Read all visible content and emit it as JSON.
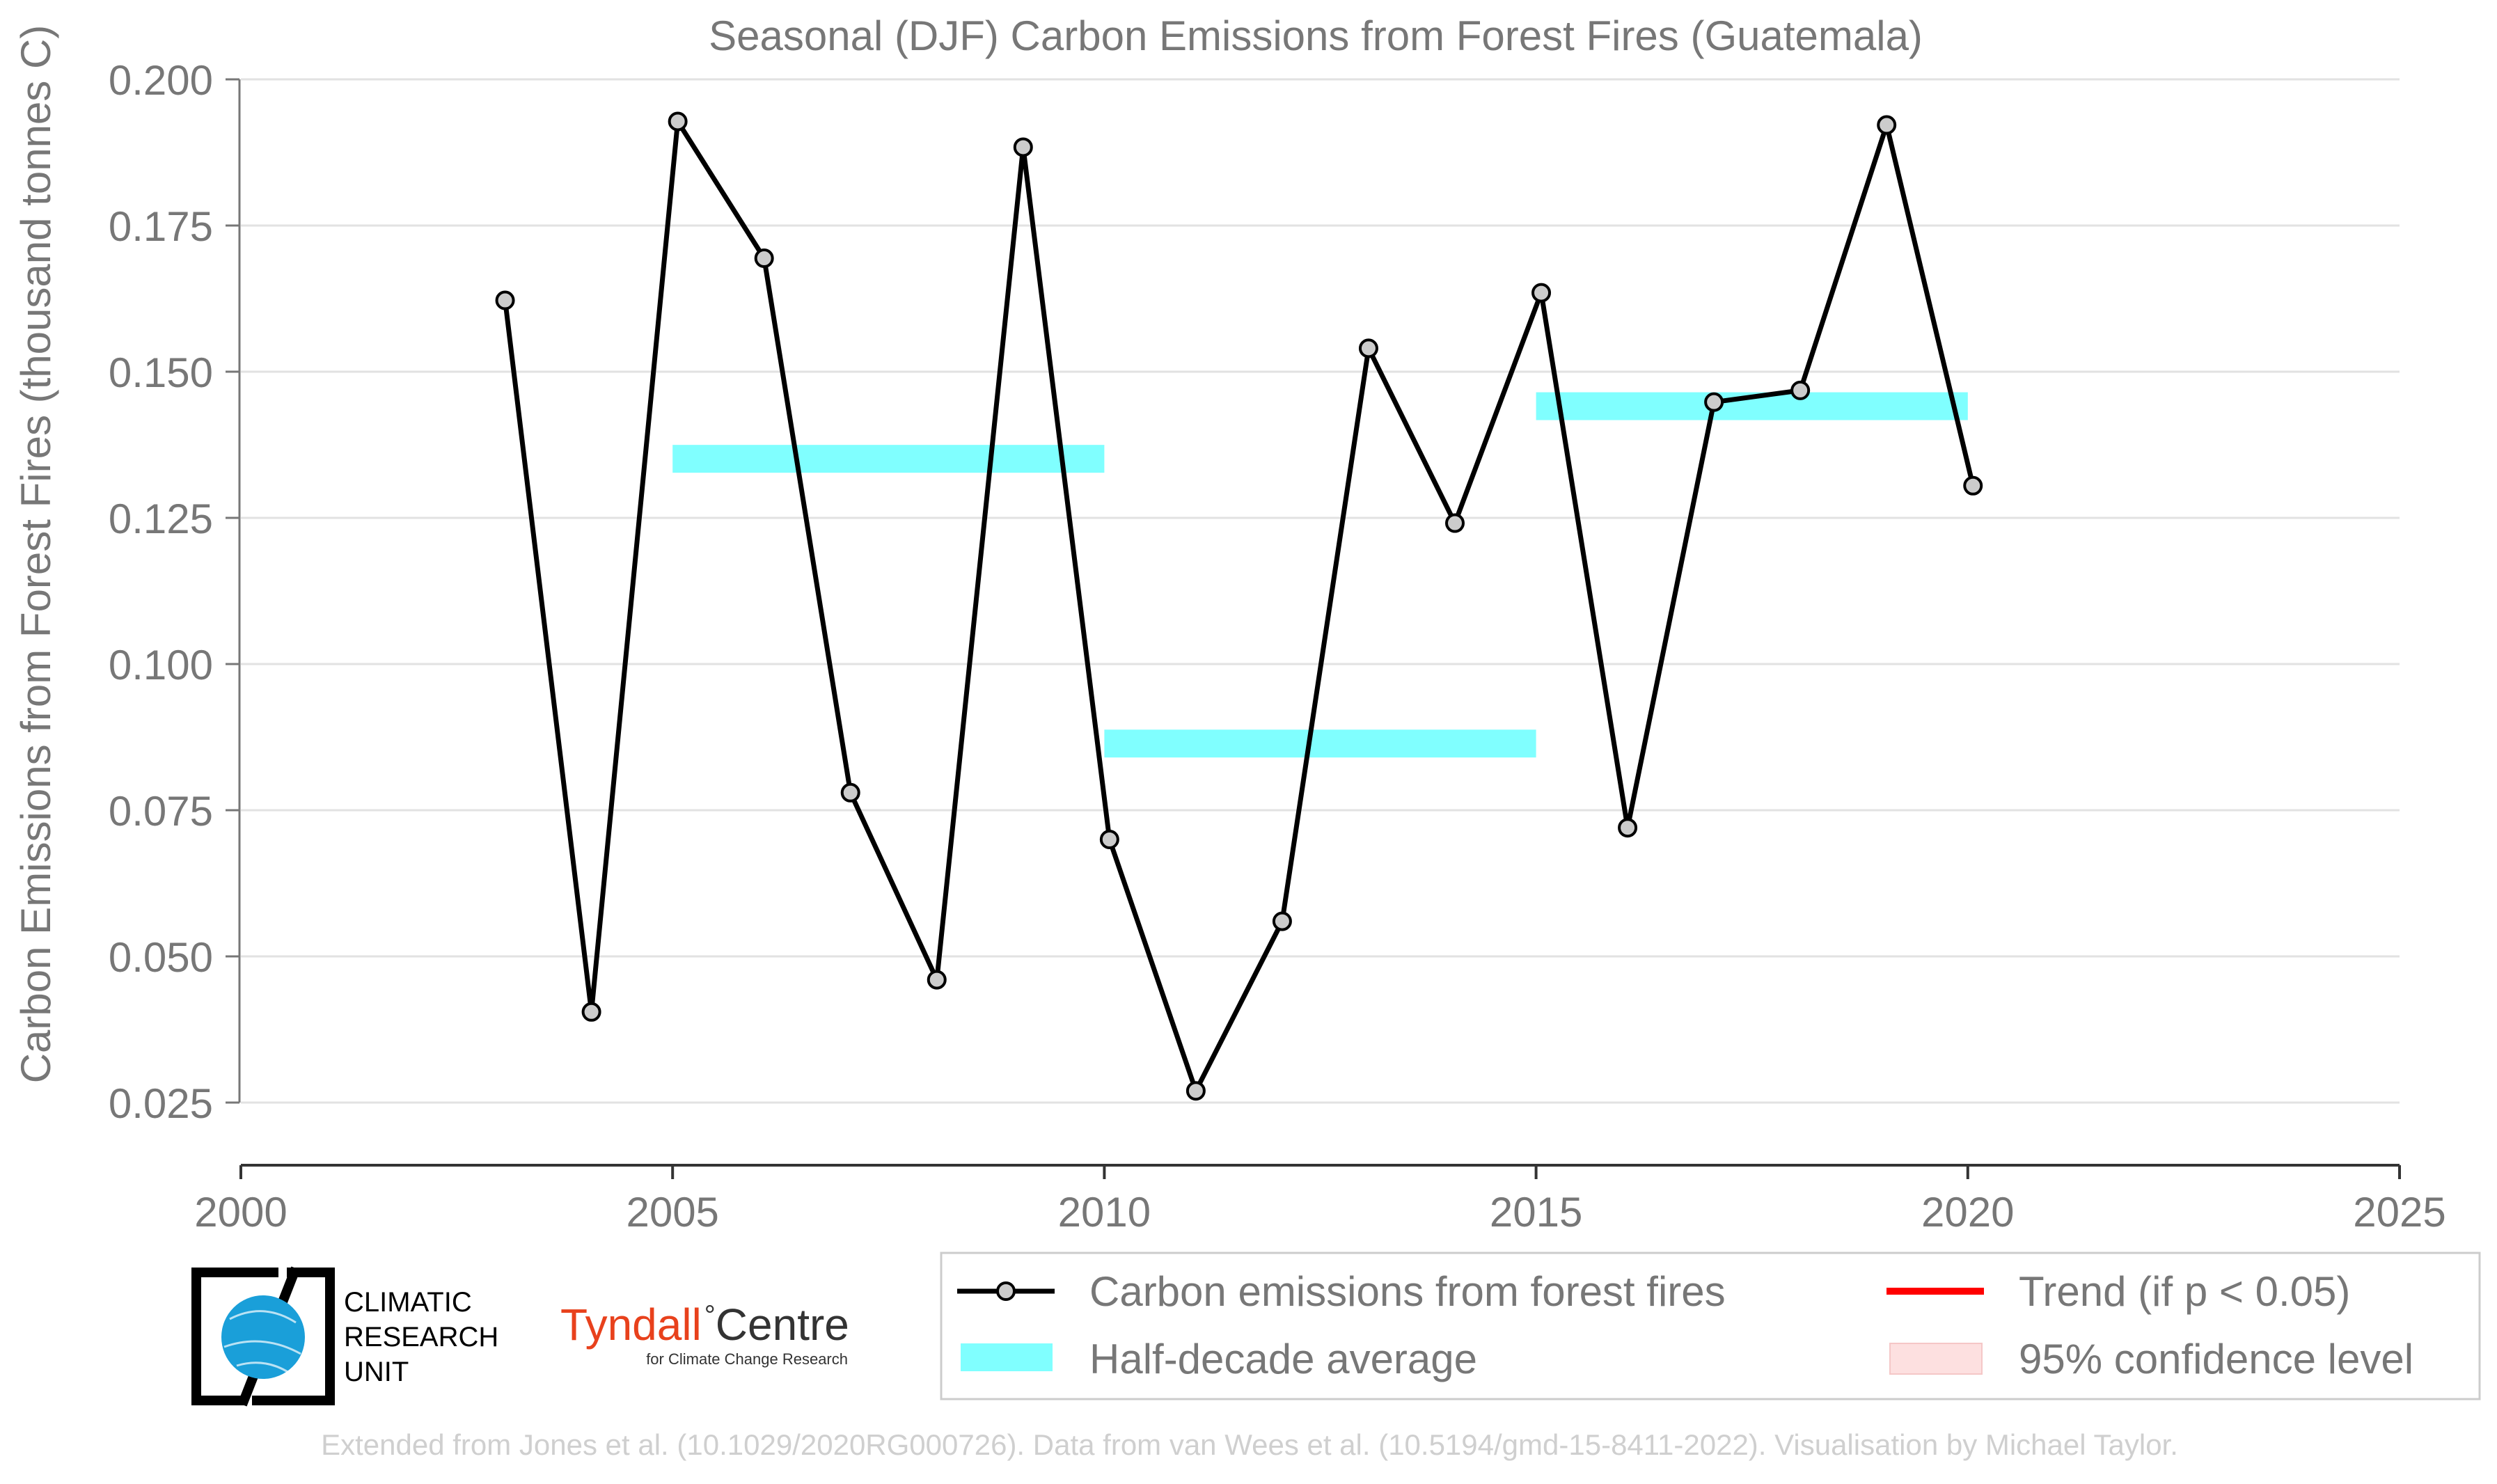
{
  "chart_data": {
    "type": "line",
    "title": "Seasonal (DJF) Carbon Emissions from Forest Fires (Guatemala)",
    "ylabel": "Carbon Emissions from Forest Fires (thousand tonnes C)",
    "xlabel": "",
    "xlim": [
      2000,
      2025
    ],
    "ylim": [
      0.025,
      0.2
    ],
    "x_ticks": [
      "2000",
      "2005",
      "2010",
      "2015",
      "2020",
      "2025"
    ],
    "y_ticks": [
      "0.025",
      "0.050",
      "0.075",
      "0.100",
      "0.125",
      "0.150",
      "0.175",
      "0.200"
    ],
    "grid": "horizontal",
    "series": [
      {
        "name": "Carbon emissions from forest fires",
        "color": "#000000",
        "marker_fill": "#cccccc",
        "x": [
          2003,
          2004,
          2005,
          2006,
          2007,
          2008,
          2009,
          2010,
          2011,
          2012,
          2013,
          2014,
          2015,
          2016,
          2017,
          2018,
          2019,
          2020
        ],
        "values": [
          0.1622,
          0.0405,
          0.1928,
          0.1694,
          0.078,
          0.046,
          0.1884,
          0.07,
          0.027,
          0.056,
          0.154,
          0.1241,
          0.1635,
          0.072,
          0.1448,
          0.1468,
          0.1922,
          0.1305
        ]
      }
    ],
    "half_decade_average": {
      "name": "Half-decade average",
      "color": "#80ffff",
      "segments": [
        {
          "x_start": 2005,
          "x_end": 2010,
          "value": 0.1351
        },
        {
          "x_start": 2010,
          "x_end": 2015,
          "value": 0.0864
        },
        {
          "x_start": 2015,
          "x_end": 2020,
          "value": 0.1441
        }
      ]
    },
    "legend": {
      "position": "bottom-right",
      "entries": [
        {
          "label": "Carbon emissions from forest fires",
          "kind": "line-marker",
          "color": "#000000"
        },
        {
          "label": "Trend (if p < 0.05)",
          "kind": "line",
          "color": "#ff0000"
        },
        {
          "label": "Half-decade average",
          "kind": "band",
          "color": "#80ffff"
        },
        {
          "label": "95% confidence level",
          "kind": "band",
          "color": "#fde0e0"
        }
      ]
    }
  },
  "logos": {
    "cru_lines": [
      "CLIMATIC",
      "RESEARCH",
      "UNIT"
    ],
    "tyndall_name": "Tyndall",
    "tyndall_suffix": "Centre",
    "tyndall_sub": "for Climate Change Research"
  },
  "credit": "Extended from Jones et al. (10.1029/2020RG000726). Data from van Wees et al. (10.5194/gmd-15-8411-2022). Visualisation by Michael Taylor."
}
